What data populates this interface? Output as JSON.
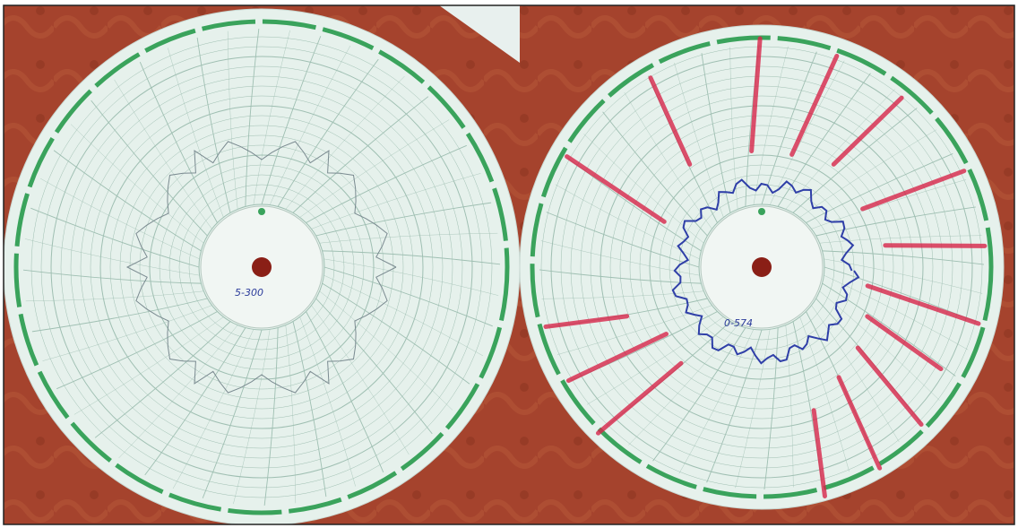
{
  "left_disc": {
    "label": "5-300"
  },
  "right_disc": {
    "label": "0-574"
  }
}
